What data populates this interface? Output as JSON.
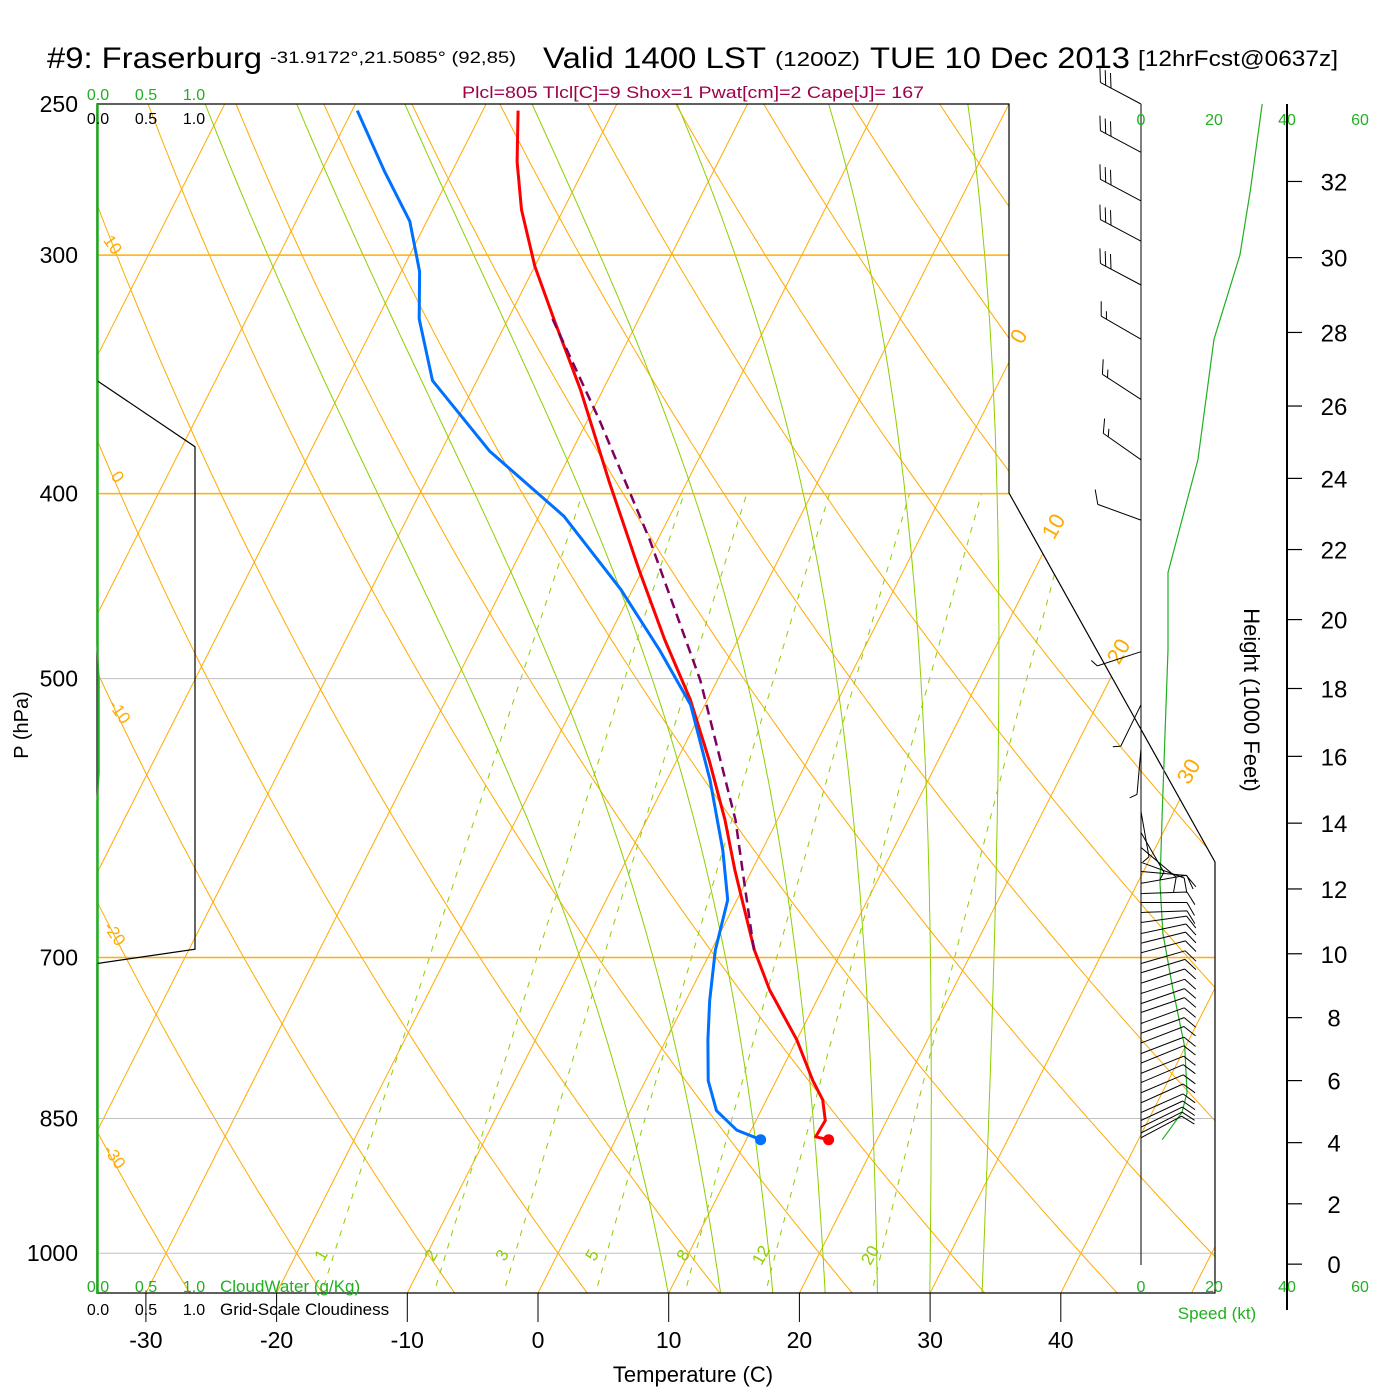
{
  "title": {
    "station": "#9: Fraserburg",
    "coords": "-31.9172°,21.5085° (92,85)",
    "valid": "Valid 1400 LST",
    "utc": "(1200Z)",
    "date": "TUE 10 Dec 2013",
    "forecast": "[12hrFcst@0637z]"
  },
  "indices": "Plcl=805 Tlcl[C]=9 Shox=1 Pwat[cm]=2 Cape[J]= 167",
  "colors": {
    "temperature": "#ff0000",
    "dewpoint": "#0070ff",
    "parcel": "#800060",
    "isotherm": "#ffaa00",
    "dry_adiabat": "#ffaa00",
    "moist_adiabat": "#8ccf00",
    "mixing_ratio": "#8ccf00",
    "cloud_water": "#20b020",
    "cloudiness": "#000000",
    "wind_speed": "#20b020",
    "indices_text": "#a0004a"
  },
  "chart_data": {
    "type": "line",
    "subtype": "skew-T log-P",
    "xlabel": "Temperature (C)",
    "ylabel": "P (hPa)",
    "y2label": "Height (1000 Feet)",
    "ylim": [
      1050,
      250
    ],
    "pressure_ticks": [
      "250",
      "300",
      "400",
      "500",
      "700",
      "850",
      "1000"
    ],
    "temperature_ticks": [
      "-30",
      "-20",
      "-10",
      "0",
      "10",
      "20",
      "30",
      "40"
    ],
    "height_ticks": [
      "0",
      "2",
      "4",
      "6",
      "8",
      "10",
      "12",
      "14",
      "16",
      "18",
      "20",
      "22",
      "24",
      "26",
      "28",
      "30",
      "32"
    ],
    "isotherm_labels": [
      "0",
      "10",
      "20",
      "30"
    ],
    "dry_adiabat_labels": [
      "10",
      "0",
      "-10",
      "-20",
      "-30"
    ],
    "mixing_ratio_labels": [
      "1",
      "2",
      "3",
      "5",
      "8",
      "12",
      "20"
    ],
    "moist_adiabat_base_temps": [
      10,
      14,
      18,
      22,
      26,
      30,
      34
    ],
    "series": [
      {
        "name": "Temperature",
        "points": [
          [
            252,
            -47.3
          ],
          [
            268,
            -45.4
          ],
          [
            284,
            -43.2
          ],
          [
            304,
            -40.0
          ],
          [
            324,
            -36.5
          ],
          [
            353,
            -31.7
          ],
          [
            394,
            -26.0
          ],
          [
            439,
            -20.2
          ],
          [
            477,
            -15.6
          ],
          [
            513,
            -11.3
          ],
          [
            552,
            -7.5
          ],
          [
            593,
            -4.0
          ],
          [
            630,
            -1.3
          ],
          [
            653,
            0.4
          ],
          [
            694,
            3.3
          ],
          [
            728,
            6.0
          ],
          [
            773,
            10.0
          ],
          [
            812,
            12.8
          ],
          [
            831,
            14.3
          ],
          [
            852,
            15.3
          ],
          [
            869,
            15.2
          ],
          [
            872,
            16.3
          ]
        ]
      },
      {
        "name": "Dewpoint",
        "points": [
          [
            252,
            -59.6
          ],
          [
            271,
            -55.2
          ],
          [
            288,
            -51.3
          ],
          [
            306,
            -48.6
          ],
          [
            324,
            -46.8
          ],
          [
            349,
            -43.4
          ],
          [
            380,
            -36.3
          ],
          [
            411,
            -28.1
          ],
          [
            449,
            -20.9
          ],
          [
            483,
            -15.6
          ],
          [
            516,
            -11.1
          ],
          [
            565,
            -6.7
          ],
          [
            615,
            -3.0
          ],
          [
            653,
            -0.7
          ],
          [
            694,
            0.3
          ],
          [
            737,
            1.8
          ],
          [
            773,
            3.2
          ],
          [
            812,
            4.8
          ],
          [
            842,
            6.6
          ],
          [
            862,
            8.9
          ],
          [
            872,
            11.1
          ]
        ]
      },
      {
        "name": "Parcel",
        "points": [
          [
            324,
            -36.6
          ],
          [
            366,
            -29.1
          ],
          [
            423,
            -20.6
          ],
          [
            501,
            -11.3
          ],
          [
            593,
            -3.2
          ],
          [
            638,
            -0.2
          ],
          [
            698,
            3.5
          ]
        ]
      }
    ],
    "surface": {
      "pressure": 872,
      "temperature": 16.3,
      "dewpoint": 11.1
    },
    "cloud_panel": {
      "ticks": [
        "0.0",
        "0.5",
        "1.0"
      ],
      "cloudwater_label": "CloudWater (g/Kg)",
      "cloudiness_label": "Grid-Scale Cloudiness",
      "cloudwater": [
        [
          250,
          0
        ],
        [
          480,
          0
        ],
        [
          500,
          0.02
        ],
        [
          560,
          0.02
        ],
        [
          580,
          0
        ],
        [
          1050,
          0
        ]
      ],
      "cloudiness": [
        [
          250,
          0
        ],
        [
          349,
          0
        ],
        [
          378,
          1
        ],
        [
          693,
          1
        ],
        [
          705,
          0
        ],
        [
          1050,
          0
        ]
      ]
    },
    "wind": {
      "speed_label": "Speed (kt)",
      "speed_ticks": [
        "0",
        "20",
        "40",
        "60"
      ],
      "speed_profile": [
        [
          250,
          33.2
        ],
        [
          278,
          29.9
        ],
        [
          300,
          27.1
        ],
        [
          332,
          20.0
        ],
        [
          384,
          15.6
        ],
        [
          440,
          7.4
        ],
        [
          483,
          7.4
        ],
        [
          588,
          5.8
        ],
        [
          640,
          5.2
        ],
        [
          680,
          6.0
        ],
        [
          728,
          8.8
        ],
        [
          780,
          12.0
        ],
        [
          824,
          12.6
        ],
        [
          844,
          11.2
        ],
        [
          872,
          5.8
        ]
      ],
      "barbs": [
        [
          250,
          298,
          30
        ],
        [
          265,
          298,
          30
        ],
        [
          281,
          298,
          30
        ],
        [
          295,
          298,
          30
        ],
        [
          311,
          298,
          30
        ],
        [
          332,
          300,
          15
        ],
        [
          357,
          303,
          15
        ],
        [
          384,
          305,
          15
        ],
        [
          413,
          290,
          10
        ],
        [
          484,
          252,
          5
        ],
        [
          516,
          206,
          5
        ],
        [
          544,
          185,
          5
        ],
        [
          587,
          170,
          5
        ],
        [
          602,
          150,
          5
        ],
        [
          613,
          130,
          10
        ],
        [
          624,
          110,
          10
        ],
        [
          631,
          95,
          10
        ],
        [
          640,
          80,
          10
        ],
        [
          648,
          88,
          10
        ],
        [
          655,
          90,
          10
        ],
        [
          663,
          88,
          10
        ],
        [
          671,
          82,
          10
        ],
        [
          680,
          78,
          10
        ],
        [
          688,
          76,
          10
        ],
        [
          696,
          75,
          10
        ],
        [
          705,
          74,
          10
        ],
        [
          713,
          73,
          10
        ],
        [
          722,
          72,
          10
        ],
        [
          731,
          72,
          10
        ],
        [
          740,
          71,
          10
        ],
        [
          748,
          71,
          10
        ],
        [
          758,
          70,
          10
        ],
        [
          767,
          70,
          10
        ],
        [
          776,
          69,
          10
        ],
        [
          786,
          69,
          10
        ],
        [
          795,
          68,
          10
        ],
        [
          805,
          68,
          10
        ],
        [
          814,
          67,
          10
        ],
        [
          824,
          67,
          10
        ],
        [
          834,
          66,
          10
        ],
        [
          844,
          66,
          10
        ],
        [
          852,
          65,
          10
        ],
        [
          859,
          64,
          10
        ],
        [
          865,
          63,
          10
        ],
        [
          870,
          62,
          10
        ]
      ]
    }
  }
}
